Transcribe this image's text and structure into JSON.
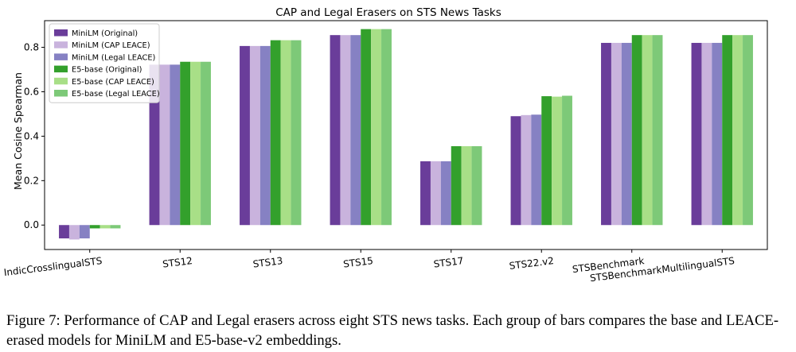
{
  "figure": {
    "caption": "Figure 7: Performance of CAP and Legal erasers across eight STS news tasks. Each group of bars compares the base and LEACE-erased models for MiniLM and E5-base-v2 embeddings."
  },
  "chart_data": {
    "type": "bar",
    "title": "CAP and Legal Erasers on STS News Tasks",
    "xlabel": "",
    "ylabel": "Mean Cosine Spearman",
    "ylim": [
      -0.11,
      0.92
    ],
    "yticks": [
      "0.0",
      "0.2",
      "0.4",
      "0.6",
      "0.8"
    ],
    "grid": false,
    "legend_position": "top-left",
    "categories": [
      "IndicCrosslingualSTS",
      "STS12",
      "STS13",
      "STS15",
      "STS17",
      "STS22.v2",
      "STSBenchmark",
      "STSBenchmarkMultilingualSTS"
    ],
    "series": [
      {
        "name": "MiniLM (Original)",
        "color": "#6a3d9a",
        "values": [
          -0.06,
          0.722,
          0.806,
          0.855,
          0.287,
          0.49,
          0.82,
          0.82
        ]
      },
      {
        "name": "MiniLM (CAP LEACE)",
        "color": "#c9b3dd",
        "values": [
          -0.065,
          0.722,
          0.806,
          0.855,
          0.287,
          0.495,
          0.82,
          0.82
        ]
      },
      {
        "name": "MiniLM (Legal LEACE)",
        "color": "#8681c3",
        "values": [
          -0.06,
          0.722,
          0.806,
          0.855,
          0.287,
          0.497,
          0.82,
          0.82
        ]
      },
      {
        "name": "E5-base (Original)",
        "color": "#33a02c",
        "values": [
          -0.015,
          0.735,
          0.832,
          0.882,
          0.355,
          0.58,
          0.855,
          0.855
        ]
      },
      {
        "name": "E5-base (CAP LEACE)",
        "color": "#a8df87",
        "values": [
          -0.015,
          0.735,
          0.832,
          0.882,
          0.355,
          0.578,
          0.855,
          0.855
        ]
      },
      {
        "name": "E5-base (Legal LEACE)",
        "color": "#7dc978",
        "values": [
          -0.015,
          0.735,
          0.832,
          0.882,
          0.355,
          0.582,
          0.855,
          0.855
        ]
      }
    ]
  }
}
